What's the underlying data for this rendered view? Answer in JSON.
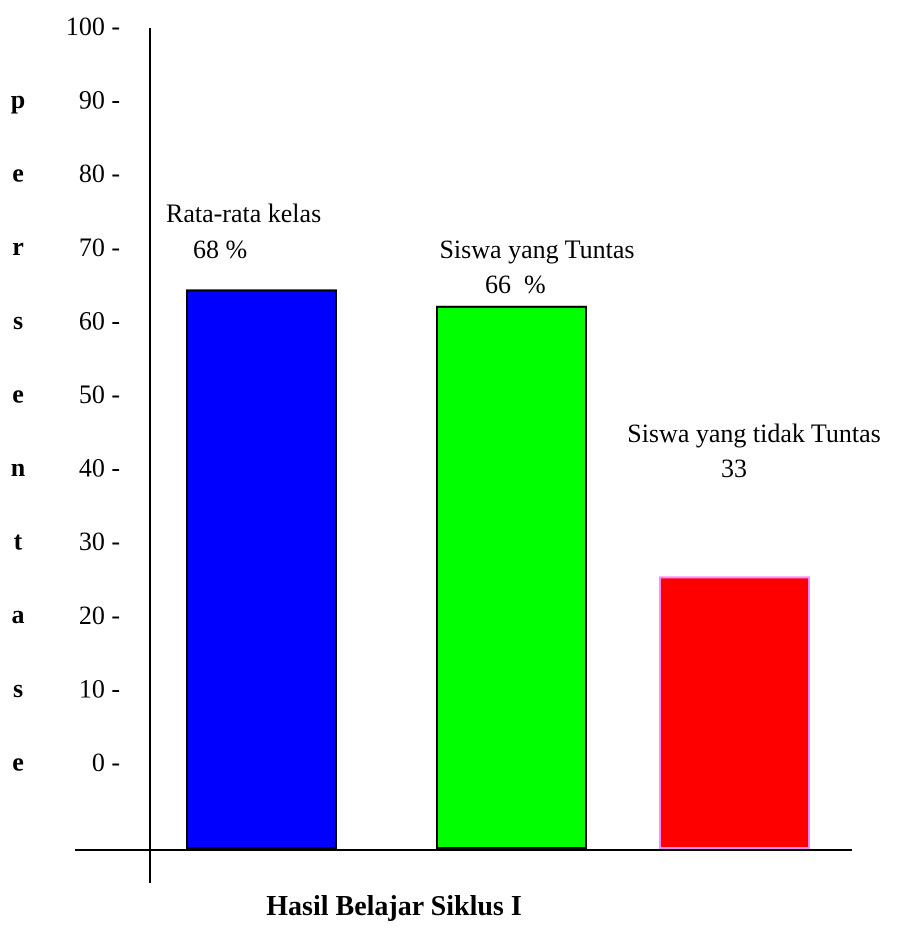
{
  "chart_data": {
    "type": "bar",
    "xlabel": "Hasil Belajar Siklus I",
    "ylabel": "persentase",
    "ylim": [
      0,
      100
    ],
    "yticks": [
      {
        "value": 100,
        "label": "100 -"
      },
      {
        "value": 90,
        "label": "90 -"
      },
      {
        "value": 80,
        "label": "80 -"
      },
      {
        "value": 70,
        "label": "70 -"
      },
      {
        "value": 60,
        "label": "60 -"
      },
      {
        "value": 50,
        "label": "50 -"
      },
      {
        "value": 40,
        "label": "40 -"
      },
      {
        "value": 30,
        "label": "30 -"
      },
      {
        "value": 20,
        "label": "20 -"
      },
      {
        "value": 10,
        "label": "10 -"
      },
      {
        "value": 0,
        "label": "0 -"
      }
    ],
    "grid": false,
    "categories": [
      "Rata-rata kelas",
      "Siswa yang Tuntas",
      "Siswa yang tidak Tuntas"
    ],
    "values": [
      68,
      66,
      33
    ],
    "value_labels": [
      "68 %",
      "66  %",
      "33"
    ],
    "colors": [
      "#0000ff",
      "#00ff00",
      "#ff0000"
    ],
    "bar_borders": [
      "#000000",
      "#000000",
      "#ff88ff"
    ]
  }
}
